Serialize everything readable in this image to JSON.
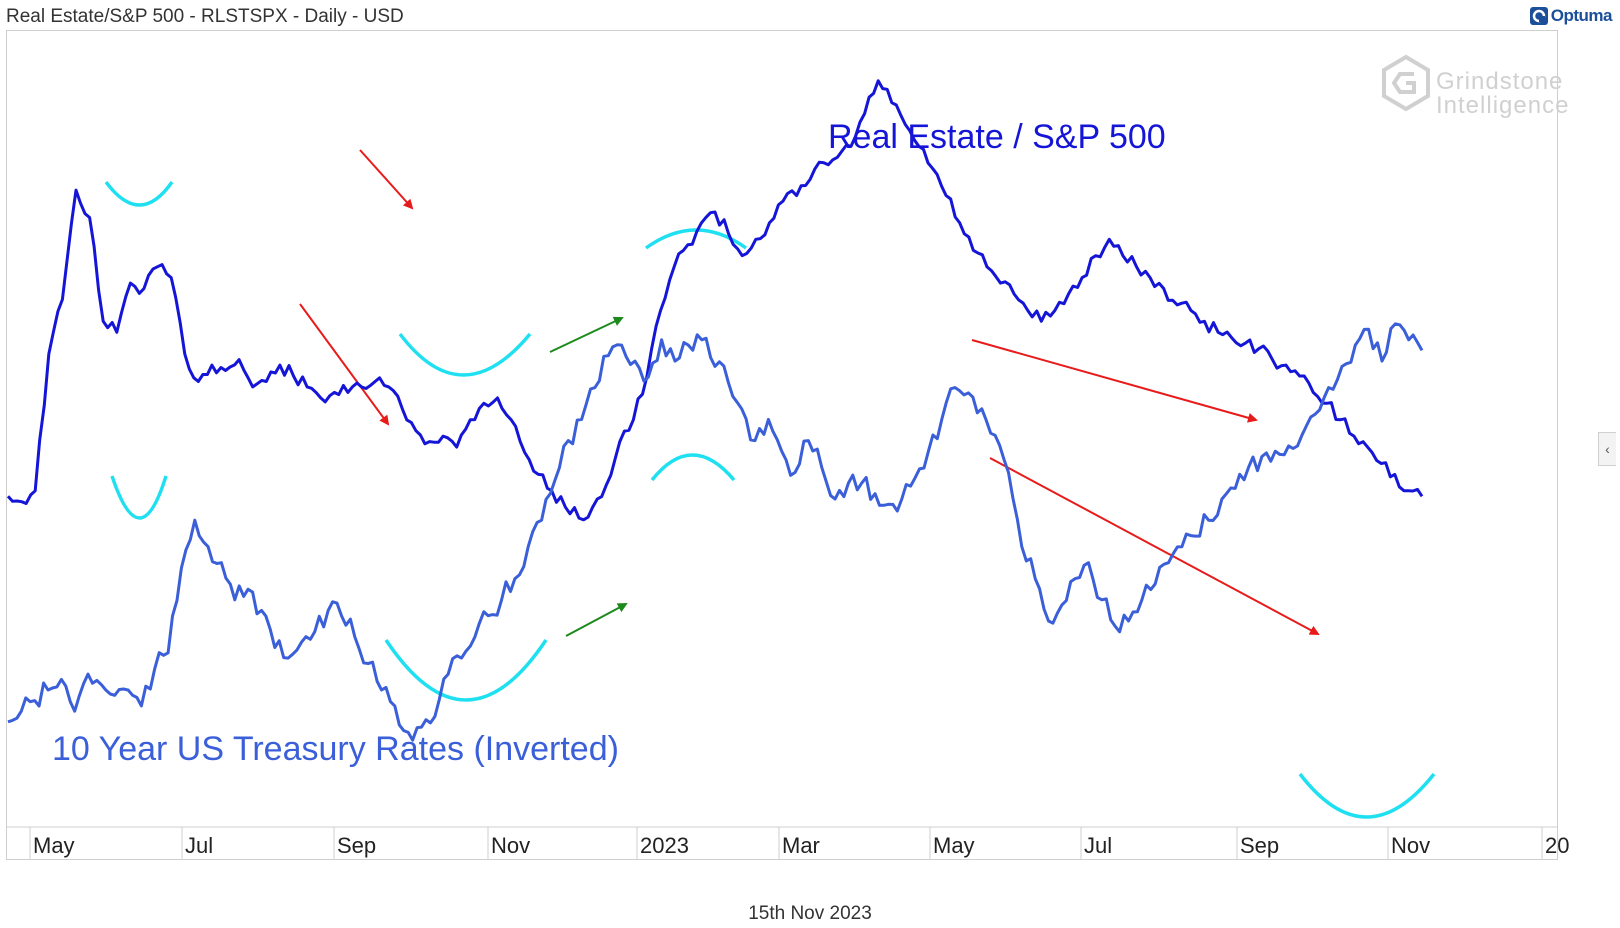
{
  "header": {
    "title": "Real Estate/S&P 500 - RLSTSPX - Daily - USD"
  },
  "brand": {
    "name": "Optuma",
    "icon": "optuma-logo-icon",
    "color": "#1b4f9a"
  },
  "watermark": {
    "line1": "Grindstone",
    "line2": "Intelligence",
    "icon": "hexagon-g-logo-icon"
  },
  "footer": {
    "date": "15th Nov 2023"
  },
  "collapse_tab": {
    "glyph": "‹"
  },
  "chart_data": {
    "type": "line",
    "x_tick_labels": [
      "May",
      "Jul",
      "Sep",
      "Nov",
      "2023",
      "Mar",
      "May",
      "Jul",
      "Sep",
      "Nov",
      "20"
    ],
    "x_range": [
      "2022-04-15",
      "2023-12-10"
    ],
    "grid": false,
    "series": [
      {
        "name": "Real Estate / S&P 500",
        "color": "#1515d8",
        "y": [
          8,
          7,
          9,
          34,
          44,
          64,
          59,
          40,
          38,
          47,
          46,
          50,
          48,
          34,
          29,
          32,
          31,
          33,
          28,
          29,
          32,
          30,
          28,
          26,
          27,
          27,
          28,
          29,
          28,
          24,
          20,
          18,
          19,
          17,
          22,
          25,
          26,
          22,
          16,
          12,
          9,
          6,
          4,
          6,
          10,
          18,
          22,
          30,
          42,
          50,
          54,
          58,
          60,
          56,
          52,
          55,
          58,
          62,
          63,
          66,
          69,
          70,
          72,
          78,
          84,
          80,
          76,
          72,
          68,
          63,
          58,
          53,
          50,
          47,
          45,
          42,
          40,
          42,
          45,
          48,
          52,
          55,
          52,
          50,
          48,
          46,
          43,
          42,
          40,
          38,
          37,
          36,
          35,
          33,
          32,
          30,
          27,
          25,
          22,
          19,
          17,
          14,
          12,
          9,
          8
        ],
        "min": 0,
        "max": 90
      },
      {
        "name": "10 Year US Treasury Rates (Inverted)",
        "color": "#3a5fd9",
        "y": [
          34,
          38,
          42,
          46,
          50,
          38,
          52,
          48,
          44,
          46,
          40,
          54,
          60,
          92,
          110,
          100,
          94,
          80,
          84,
          76,
          62,
          58,
          64,
          68,
          76,
          74,
          66,
          56,
          46,
          40,
          30,
          32,
          36,
          52,
          58,
          66,
          74,
          80,
          88,
          100,
          110,
          125,
          140,
          148,
          160,
          172,
          176,
          170,
          164,
          178,
          170,
          176,
          178,
          168,
          162,
          152,
          140,
          148,
          136,
          128,
          140,
          130,
          118,
          124,
          124,
          120,
          116,
          118,
          126,
          136,
          148,
          160,
          158,
          152,
          142,
          128,
          100,
          88,
          72,
          78,
          88,
          94,
          80,
          70,
          72,
          80,
          86,
          94,
          100,
          104,
          110,
          118,
          122,
          130,
          134,
          136,
          138,
          142,
          150,
          160,
          168,
          176,
          182,
          170,
          184,
          178,
          174
        ]
      }
    ],
    "annotations": {
      "arrows": [
        {
          "color": "#e81b1b",
          "direction": "down"
        },
        {
          "color": "#e81b1b",
          "direction": "down"
        },
        {
          "color": "#1d8a1d",
          "direction": "up"
        },
        {
          "color": "#1d8a1d",
          "direction": "up"
        },
        {
          "color": "#e81b1b",
          "direction": "down"
        },
        {
          "color": "#e81b1b",
          "direction": "down"
        }
      ],
      "arcs_color": "#1fe0f0"
    }
  }
}
